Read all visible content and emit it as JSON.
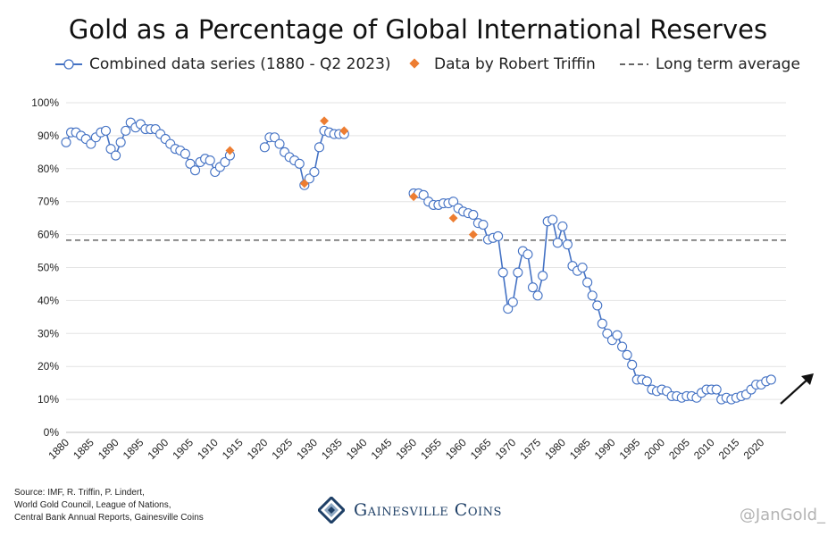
{
  "chart_data": {
    "type": "line",
    "title": "Gold as a Percentage of Global International Reserves",
    "xlabel": "",
    "ylabel": "",
    "xlim": [
      1880,
      2025
    ],
    "ylim": [
      0,
      100
    ],
    "y_ticks": [
      "0%",
      "10%",
      "20%",
      "30%",
      "40%",
      "50%",
      "60%",
      "70%",
      "80%",
      "90%",
      "100%"
    ],
    "x_ticks": [
      "1880",
      "1885",
      "1890",
      "1895",
      "1900",
      "1905",
      "1910",
      "1915",
      "1920",
      "1925",
      "1930",
      "1935",
      "1940",
      "1945",
      "1950",
      "1955",
      "1960",
      "1965",
      "1970",
      "1975",
      "1980",
      "1985",
      "1990",
      "1995",
      "2000",
      "2005",
      "2010",
      "2015",
      "2020"
    ],
    "grid": true,
    "legend_position": "top",
    "series": [
      {
        "name": "Combined data series (1880 - Q2 2023)",
        "color": "#4472c4",
        "segments": [
          [
            [
              1880,
              88
            ],
            [
              1881,
              91
            ],
            [
              1882,
              91
            ],
            [
              1883,
              90
            ],
            [
              1884,
              89
            ],
            [
              1885,
              87.5
            ],
            [
              1886,
              89.5
            ],
            [
              1887,
              91
            ],
            [
              1888,
              91.5
            ],
            [
              1889,
              86
            ],
            [
              1890,
              84
            ],
            [
              1891,
              88
            ],
            [
              1892,
              91.5
            ],
            [
              1893,
              94
            ],
            [
              1894,
              92.5
            ],
            [
              1895,
              93.5
            ],
            [
              1896,
              92
            ],
            [
              1897,
              92
            ],
            [
              1898,
              92
            ],
            [
              1899,
              90.5
            ],
            [
              1900,
              89
            ],
            [
              1901,
              87.5
            ],
            [
              1902,
              86
            ],
            [
              1903,
              85.5
            ],
            [
              1904,
              84.5
            ],
            [
              1905,
              81.5
            ],
            [
              1906,
              79.5
            ],
            [
              1907,
              82
            ],
            [
              1908,
              83
            ],
            [
              1909,
              82.5
            ],
            [
              1910,
              79
            ],
            [
              1911,
              80.5
            ],
            [
              1912,
              82
            ],
            [
              1913,
              84
            ]
          ],
          [
            [
              1920,
              86.5
            ],
            [
              1921,
              89.5
            ],
            [
              1922,
              89.5
            ],
            [
              1923,
              87.5
            ],
            [
              1924,
              85
            ],
            [
              1925,
              83.5
            ],
            [
              1926,
              82.5
            ],
            [
              1927,
              81.5
            ],
            [
              1928,
              75
            ],
            [
              1929,
              77
            ],
            [
              1930,
              79
            ],
            [
              1931,
              86.5
            ],
            [
              1932,
              91.5
            ],
            [
              1933,
              91
            ],
            [
              1934,
              90.5
            ],
            [
              1935,
              90.5
            ],
            [
              1936,
              90.5
            ]
          ],
          [
            [
              1950,
              72.5
            ],
            [
              1951,
              72.5
            ],
            [
              1952,
              72
            ],
            [
              1953,
              70
            ],
            [
              1954,
              69
            ],
            [
              1955,
              69
            ],
            [
              1956,
              69.5
            ],
            [
              1957,
              69.5
            ],
            [
              1958,
              70
            ],
            [
              1959,
              68
            ],
            [
              1960,
              67
            ],
            [
              1961,
              66.5
            ],
            [
              1962,
              66
            ],
            [
              1963,
              63.5
            ],
            [
              1964,
              63
            ],
            [
              1965,
              58.5
            ],
            [
              1966,
              59
            ],
            [
              1967,
              59.5
            ],
            [
              1968,
              48.5
            ],
            [
              1969,
              37.5
            ],
            [
              1970,
              39.5
            ],
            [
              1971,
              48.5
            ],
            [
              1972,
              55
            ],
            [
              1973,
              54
            ],
            [
              1974,
              44
            ],
            [
              1975,
              41.5
            ],
            [
              1976,
              47.5
            ],
            [
              1977,
              64
            ],
            [
              1978,
              64.5
            ],
            [
              1979,
              57.5
            ],
            [
              1980,
              62.5
            ],
            [
              1981,
              57
            ],
            [
              1982,
              50.5
            ],
            [
              1983,
              49
            ],
            [
              1984,
              50
            ],
            [
              1985,
              45.5
            ],
            [
              1986,
              41.5
            ],
            [
              1987,
              38.5
            ],
            [
              1988,
              33
            ],
            [
              1989,
              30
            ],
            [
              1990,
              28
            ],
            [
              1991,
              29.5
            ],
            [
              1992,
              26
            ],
            [
              1993,
              23.5
            ],
            [
              1994,
              20.5
            ],
            [
              1995,
              16
            ],
            [
              1996,
              16
            ],
            [
              1997,
              15.5
            ],
            [
              1998,
              13
            ],
            [
              1999,
              12.5
            ],
            [
              2000,
              13
            ],
            [
              2001,
              12.5
            ],
            [
              2002,
              11
            ],
            [
              2003,
              11
            ],
            [
              2004,
              10.5
            ],
            [
              2005,
              11
            ],
            [
              2006,
              11
            ],
            [
              2007,
              10.5
            ],
            [
              2008,
              12
            ],
            [
              2009,
              13
            ],
            [
              2010,
              13
            ],
            [
              2011,
              13
            ],
            [
              2012,
              10
            ],
            [
              2013,
              10.5
            ],
            [
              2014,
              10
            ],
            [
              2015,
              10.5
            ],
            [
              2016,
              11
            ],
            [
              2017,
              11.5
            ],
            [
              2018,
              13
            ],
            [
              2019,
              14.5
            ],
            [
              2020,
              14.5
            ],
            [
              2021,
              15.5
            ],
            [
              2022,
              16
            ]
          ]
        ]
      },
      {
        "name": "Data by Robert Triffin",
        "color": "#ed7d31",
        "points": [
          [
            1913,
            85.5
          ],
          [
            1928,
            75.5
          ],
          [
            1932,
            94.5
          ],
          [
            1936,
            91.5
          ],
          [
            1950,
            71.5
          ],
          [
            1958,
            65
          ],
          [
            1962,
            60
          ]
        ]
      },
      {
        "name": "Long term average",
        "color": "#666666",
        "value": 58.3
      }
    ]
  },
  "source": {
    "lines": [
      "Source: IMF, R. Triffin, P. Lindert,",
      "World Gold Council, League of Nations,",
      "Central Bank Annual Reports, Gainesville Coins"
    ]
  },
  "brand": {
    "name": "Gainesville Coins",
    "color": "#1e3f66"
  },
  "watermark": "@JanGold_"
}
